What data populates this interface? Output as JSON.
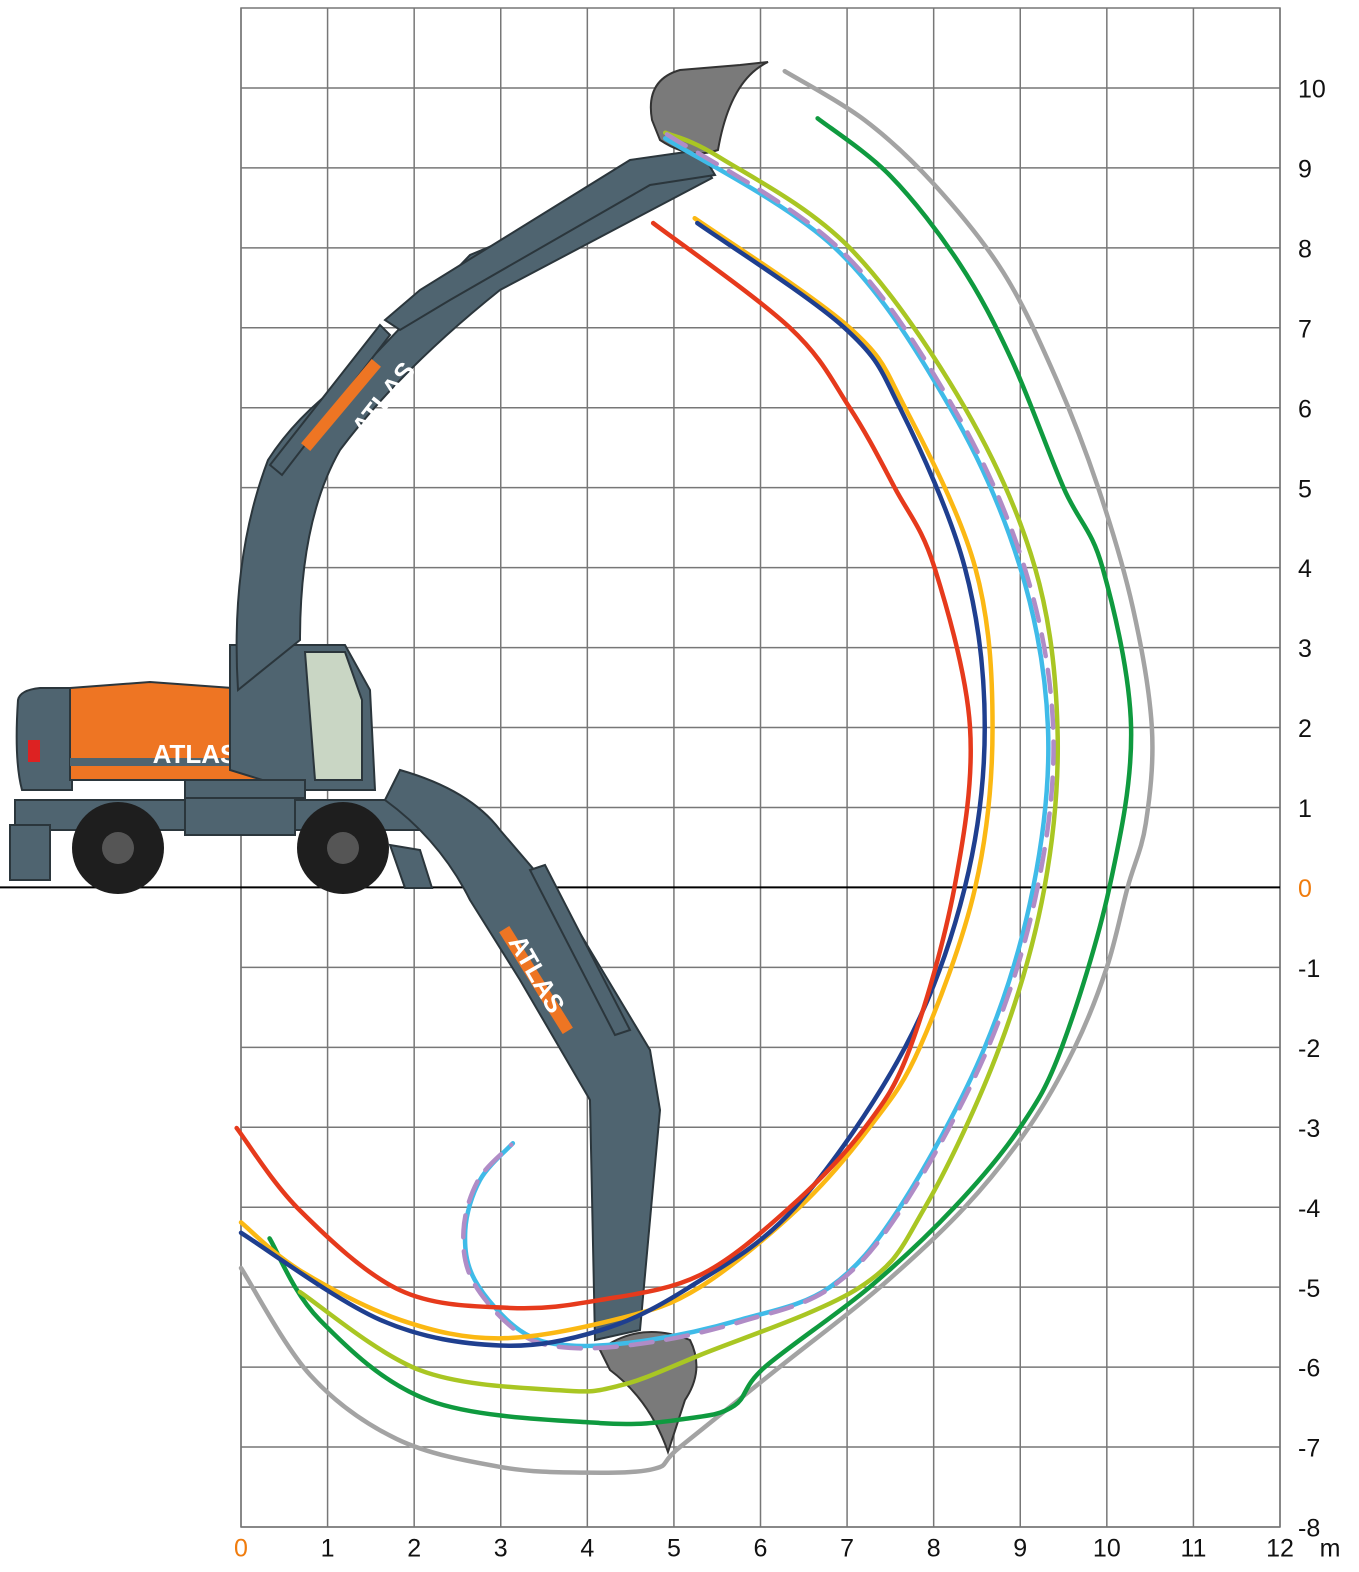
{
  "chart_data": {
    "type": "line",
    "brand": "ATLAS",
    "xlabel": "m",
    "xlim": [
      0,
      12
    ],
    "ylim": [
      -8,
      11
    ],
    "xticks": [
      0,
      1,
      2,
      3,
      4,
      5,
      6,
      7,
      8,
      9,
      10,
      11,
      12
    ],
    "yticks": [
      -8,
      -7,
      -6,
      -5,
      -4,
      -3,
      -2,
      -1,
      0,
      1,
      2,
      3,
      4,
      5,
      6,
      7,
      8,
      9,
      10
    ],
    "grid": true,
    "origin_tick_color": "#f07c0d",
    "series": [
      {
        "color": "#a3a3a3",
        "x": [
          6.28,
          7.2,
          8.0,
          8.8,
          9.4,
          9.9,
          10.3,
          10.52,
          10.45,
          10.24,
          10.0,
          9.63,
          9.1,
          8.36,
          7.38,
          6.22,
          5.07,
          4.78,
          4.0,
          3.0,
          1.8,
          0.8,
          0
        ],
        "values": [
          10.21,
          9.6,
          8.8,
          7.7,
          6.4,
          5.0,
          3.5,
          2.0,
          0.8,
          0,
          -1,
          -2,
          -3,
          -4,
          -5,
          -6,
          -7,
          -7.27,
          -7.32,
          -7.25,
          -6.9,
          -6.1,
          -4.76
        ]
      },
      {
        "color": "#0f9a3f",
        "x": [
          6.66,
          7.5,
          8.3,
          8.9,
          9.5,
          9.95,
          10.28,
          10.03,
          9.48,
          9.0,
          8.24,
          7.26,
          6.05,
          5.7,
          5.18,
          4.15,
          2.18,
          0.91,
          0.33
        ],
        "values": [
          9.62,
          8.9,
          7.8,
          6.6,
          5.0,
          4.0,
          2.0,
          0,
          -2,
          -3,
          -4,
          -5,
          -6,
          -6.48,
          -6.64,
          -6.7,
          -6.42,
          -5.41,
          -4.39
        ]
      },
      {
        "color": "#a9c623",
        "x": [
          4.9,
          5.53,
          7.03,
          8.36,
          9.17,
          9.43,
          9.28,
          8.76,
          7.9,
          7.15,
          5.3,
          4.38,
          3.68,
          2.07,
          0.68
        ],
        "values": [
          9.44,
          9.13,
          8.0,
          6.0,
          4.0,
          2.0,
          0,
          -2,
          -4,
          -5,
          -5.85,
          -6.23,
          -6.29,
          -6.04,
          -5.06
        ]
      },
      {
        "color": "#3fbbe8",
        "x": [
          4.9,
          6.86,
          8.19,
          9.0,
          9.32,
          9.15,
          8.59,
          7.61,
          6.8,
          5.76,
          4.72,
          3.8,
          3.22,
          2.7,
          2.59,
          2.76,
          3.14
        ],
        "values": [
          9.37,
          8.0,
          6.0,
          4.0,
          2.0,
          0,
          -2,
          -4,
          -5,
          -5.41,
          -5.66,
          -5.73,
          -5.54,
          -4.91,
          -4.29,
          -3.66,
          -3.2
        ]
      },
      {
        "color": "#b08cc6",
        "dash": true,
        "x": [
          4.92,
          6.9,
          8.23,
          9.05,
          9.38,
          9.2,
          8.63,
          7.64,
          6.82,
          5.78,
          4.73,
          3.8,
          3.21,
          2.68,
          2.57,
          2.74,
          3.12
        ],
        "values": [
          9.42,
          8.0,
          6.0,
          4.0,
          2.0,
          0,
          -2,
          -4,
          -5,
          -5.43,
          -5.69,
          -5.76,
          -5.57,
          -4.93,
          -4.29,
          -3.66,
          -3.22
        ]
      },
      {
        "color": "#fbb813",
        "x": [
          5.24,
          7.03,
          7.67,
          8.48,
          8.68,
          8.48,
          7.84,
          7.26,
          6.45,
          5.3,
          4.38,
          2.99,
          1.84,
          0.68,
          0
        ],
        "values": [
          8.37,
          7.0,
          6.0,
          4.0,
          2.0,
          0,
          -2,
          -3,
          -4,
          -5,
          -5.39,
          -5.64,
          -5.41,
          -4.79,
          -4.19
        ]
      },
      {
        "color": "#1f3f8f",
        "x": [
          5.27,
          6.97,
          7.61,
          8.36,
          8.59,
          8.36,
          7.67,
          6.4,
          5.18,
          4.15,
          2.99,
          1.61,
          0
        ],
        "values": [
          8.31,
          7.0,
          6.0,
          4.0,
          2.0,
          0,
          -2,
          -4,
          -5,
          -5.54,
          -5.73,
          -5.41,
          -4.32
        ]
      },
      {
        "color": "#e63a1c",
        "x": [
          4.76,
          6.34,
          7.03,
          7.55,
          8.01,
          8.42,
          8.24,
          7.73,
          7.21,
          6.34,
          5.3,
          4.15,
          3.11,
          1.84,
          0.68,
          -0.05
        ],
        "values": [
          8.31,
          7.0,
          6.0,
          5.0,
          4.0,
          2.0,
          0,
          -2,
          -3,
          -4,
          -4.85,
          -5.16,
          -5.26,
          -5.04,
          -4.04,
          -3.01
        ]
      }
    ]
  }
}
